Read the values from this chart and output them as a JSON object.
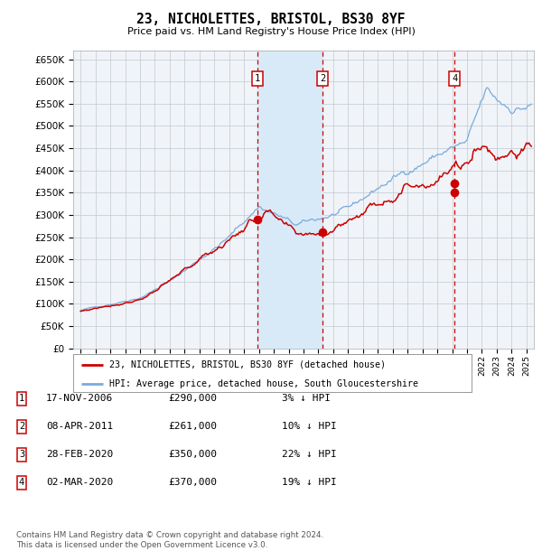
{
  "title": "23, NICHOLETTES, BRISTOL, BS30 8YF",
  "subtitle": "Price paid vs. HM Land Registry's House Price Index (HPI)",
  "legend_line1": "23, NICHOLETTES, BRISTOL, BS30 8YF (detached house)",
  "legend_line2": "HPI: Average price, detached house, South Gloucestershire",
  "footer1": "Contains HM Land Registry data © Crown copyright and database right 2024.",
  "footer2": "This data is licensed under the Open Government Licence v3.0.",
  "transactions": [
    {
      "num": 1,
      "date": "17-NOV-2006",
      "price": 290000,
      "pct": "3%",
      "dir": "↓",
      "label": "HPI"
    },
    {
      "num": 2,
      "date": "08-APR-2011",
      "price": 261000,
      "pct": "10%",
      "dir": "↓",
      "label": "HPI"
    },
    {
      "num": 3,
      "date": "28-FEB-2020",
      "price": 350000,
      "pct": "22%",
      "dir": "↓",
      "label": "HPI"
    },
    {
      "num": 4,
      "date": "02-MAR-2020",
      "price": 370000,
      "pct": "19%",
      "dir": "↓",
      "label": "HPI"
    }
  ],
  "transaction_dates_decimal": [
    2006.88,
    2011.27,
    2020.16,
    2020.17
  ],
  "transaction_prices": [
    290000,
    261000,
    350000,
    370000
  ],
  "vline_nums": [
    1,
    2,
    4
  ],
  "vline_dates_decimal": [
    2006.88,
    2011.27,
    2020.17
  ],
  "shaded_region": [
    2006.88,
    2011.27
  ],
  "ylim": [
    0,
    670000
  ],
  "yticks": [
    0,
    50000,
    100000,
    150000,
    200000,
    250000,
    300000,
    350000,
    400000,
    450000,
    500000,
    550000,
    600000,
    650000
  ],
  "xlim_start": 1994.5,
  "xlim_end": 2025.5,
  "background_color": "#f0f4f8",
  "grid_color": "#c0c8d0",
  "red_line_color": "#cc0000",
  "blue_line_color": "#7aaadd",
  "dot_color": "#cc0000",
  "vline_color": "#cc0000",
  "shaded_color": "#d8eaf8",
  "box_edge_color": "#cc0000"
}
